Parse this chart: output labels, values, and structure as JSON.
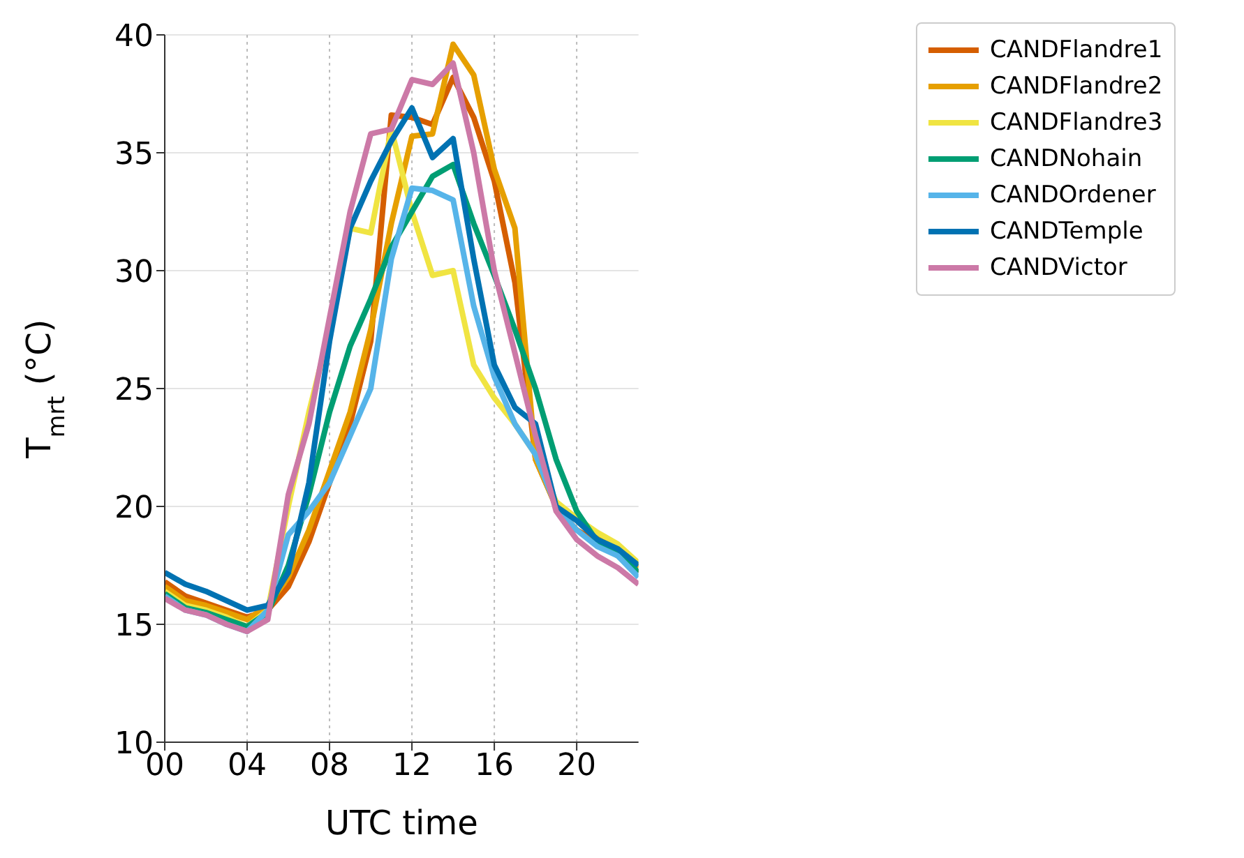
{
  "chart_data": {
    "type": "line",
    "xlabel": "UTC time",
    "ylabel": "T$_{mrt}$ (°C)",
    "x": [
      0,
      1,
      2,
      3,
      4,
      5,
      6,
      7,
      8,
      9,
      10,
      11,
      12,
      13,
      14,
      15,
      16,
      17,
      18,
      19,
      20,
      21,
      22,
      23
    ],
    "xlim": [
      0,
      23
    ],
    "xticks": [
      {
        "value": 0,
        "label": "00"
      },
      {
        "value": 4,
        "label": "04"
      },
      {
        "value": 8,
        "label": "08"
      },
      12,
      16,
      20
    ],
    "ylim": [
      10,
      40
    ],
    "yticks": [
      10,
      15,
      20,
      25,
      30,
      35,
      40
    ],
    "grid": true,
    "legend": "right",
    "marker": "none",
    "line_style": "solid",
    "series": [
      {
        "name": "CANDFlandre1",
        "color": "#d55e00",
        "values": [
          16.8,
          16.2,
          15.9,
          15.6,
          15.3,
          15.6,
          16.6,
          18.5,
          21,
          23.5,
          27,
          36.6,
          36.5,
          36.2,
          38.2,
          36.5,
          33.8,
          29.5,
          22,
          20,
          19,
          18.5,
          17.9,
          17.2
        ]
      },
      {
        "name": "CANDFlandre2",
        "color": "#e69f00",
        "values": [
          16.6,
          16,
          15.8,
          15.5,
          15.2,
          15.8,
          17,
          19,
          21.5,
          24,
          27.5,
          32,
          35.7,
          35.8,
          39.6,
          38.3,
          34.3,
          31.8,
          22,
          20,
          19.5,
          18.7,
          18.3,
          17.4
        ]
      },
      {
        "name": "CANDFlandre3",
        "color": "#f0e442",
        "values": [
          16.4,
          15.8,
          15.6,
          15.3,
          14.9,
          15.6,
          20,
          24,
          27.5,
          31.8,
          31.6,
          36,
          32.5,
          29.8,
          30,
          26,
          24.6,
          23.5,
          22.2,
          20.2,
          19.5,
          18.9,
          18.4,
          17.6
        ]
      },
      {
        "name": "CANDNohain",
        "color": "#009e73",
        "values": [
          16.3,
          15.7,
          15.5,
          15.2,
          14.9,
          15.5,
          17.5,
          20.5,
          24,
          26.8,
          28.8,
          31,
          32.5,
          34,
          34.5,
          32,
          29.8,
          27.5,
          25,
          22,
          19.8,
          18.5,
          18,
          17.2
        ]
      },
      {
        "name": "CANDOrdener",
        "color": "#56b4e9",
        "values": [
          16.2,
          15.6,
          15.4,
          15,
          14.7,
          15.6,
          18.8,
          19.8,
          21,
          23,
          25,
          30.5,
          33.5,
          33.4,
          33,
          28.5,
          25.5,
          23.5,
          22.2,
          20,
          19,
          18.3,
          17.9,
          17
        ]
      },
      {
        "name": "CANDTemple",
        "color": "#0072b2",
        "values": [
          17.2,
          16.7,
          16.4,
          16,
          15.6,
          15.8,
          17.2,
          21,
          27,
          31.8,
          33.8,
          35.5,
          36.9,
          34.8,
          35.6,
          30.5,
          26,
          24.2,
          23.5,
          20,
          19.4,
          18.6,
          18.2,
          17.5
        ]
      },
      {
        "name": "CANDVictor",
        "color": "#cc79a7",
        "values": [
          16.1,
          15.6,
          15.4,
          15,
          14.7,
          15.2,
          20.5,
          23.5,
          28,
          32.5,
          35.8,
          36,
          38.1,
          37.9,
          38.8,
          35,
          30,
          26.5,
          23,
          19.8,
          18.6,
          17.9,
          17.4,
          16.7
        ]
      }
    ]
  }
}
